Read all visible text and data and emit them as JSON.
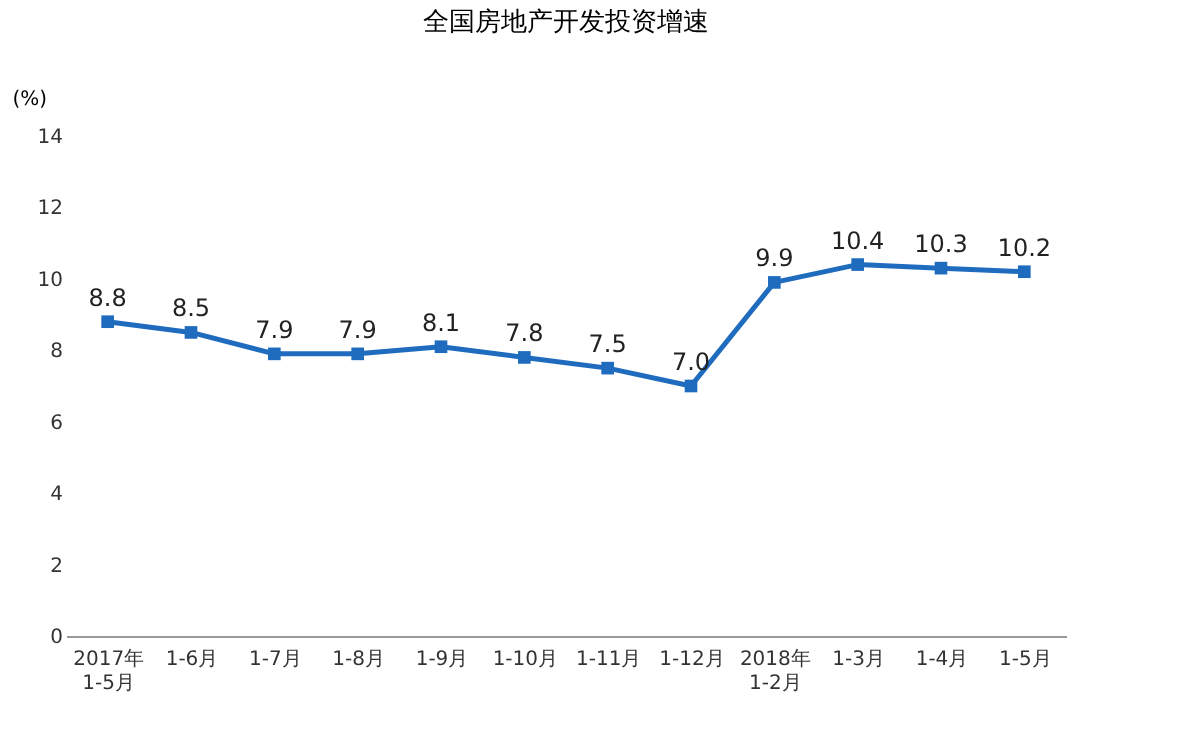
{
  "chart_data": {
    "type": "line",
    "title": "全国房地产开发投资增速",
    "ylabel": "(%)",
    "categories": [
      "2017年\n1-5月",
      "1-6月",
      "1-7月",
      "1-8月",
      "1-9月",
      "1-10月",
      "1-11月",
      "1-12月",
      "2018年\n1-2月",
      "1-3月",
      "1-4月",
      "1-5月"
    ],
    "series": [
      {
        "color": "#1f6cbf",
        "values": [
          8.8,
          8.5,
          7.9,
          7.9,
          8.1,
          7.8,
          7.5,
          7.0,
          9.9,
          10.4,
          10.3,
          10.2
        ],
        "value_labels": [
          "8.8",
          "8.5",
          "7.9",
          "7.9",
          "8.1",
          "7.8",
          "7.5",
          "7.0",
          "9.9",
          "10.4",
          "10.3",
          "10.2"
        ]
      }
    ],
    "ylim": [
      0,
      14
    ],
    "yticks": [
      0,
      2,
      4,
      6,
      8,
      10,
      12,
      14
    ],
    "marker": "square",
    "line_style": "solid",
    "grid": false
  }
}
